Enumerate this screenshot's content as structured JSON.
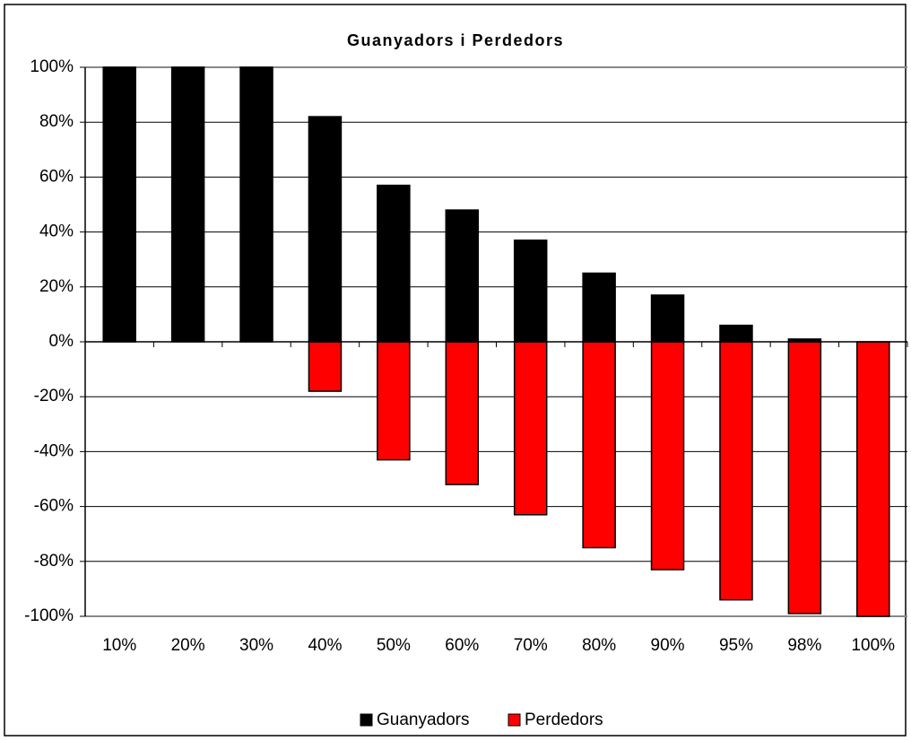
{
  "chart_data": {
    "type": "bar",
    "title": "Guanyadors i Perdedors",
    "categories": [
      "10%",
      "20%",
      "30%",
      "40%",
      "50%",
      "60%",
      "70%",
      "80%",
      "90%",
      "95%",
      "98%",
      "100%"
    ],
    "series": [
      {
        "name": "Guanyadors",
        "color": "#000000",
        "values": [
          100,
          100,
          100,
          82,
          57,
          48,
          37,
          25,
          17,
          6,
          1,
          0
        ]
      },
      {
        "name": "Perdedors",
        "color": "#ff0000",
        "values": [
          0,
          0,
          0,
          -18,
          -43,
          -52,
          -63,
          -75,
          -83,
          -94,
          -99,
          -100
        ]
      }
    ],
    "ylim": [
      -100,
      100
    ],
    "yticks": [
      {
        "value": 100,
        "label": "100%"
      },
      {
        "value": 80,
        "label": "80%"
      },
      {
        "value": 60,
        "label": "60%"
      },
      {
        "value": 40,
        "label": "40%"
      },
      {
        "value": 20,
        "label": "20%"
      },
      {
        "value": 0,
        "label": "0%"
      },
      {
        "value": -20,
        "label": "-20%"
      },
      {
        "value": -40,
        "label": "-40%"
      },
      {
        "value": -60,
        "label": "-60%"
      },
      {
        "value": -80,
        "label": "-80%"
      },
      {
        "value": -100,
        "label": "-100%"
      }
    ],
    "grid": true,
    "legend": "bottom"
  }
}
